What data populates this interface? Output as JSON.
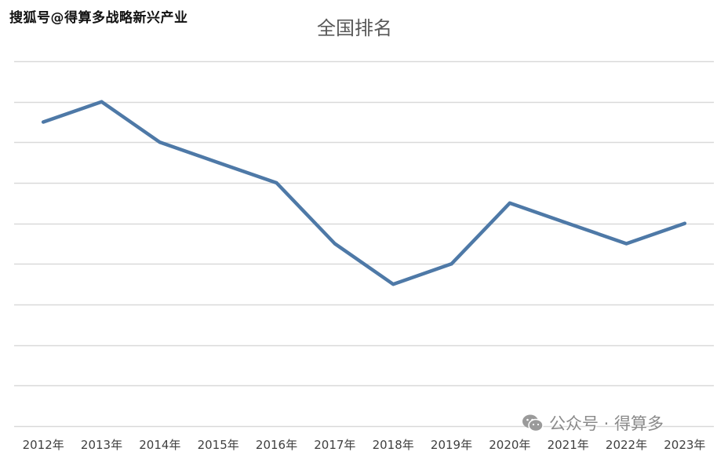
{
  "watermarks": {
    "top": "搜狐号@得算多战略新兴产业",
    "bottom": "公众号 · 得算多",
    "bottom_icon": "wechat-icon"
  },
  "chart_data": {
    "type": "line",
    "title": "全国排名",
    "xlabel": "",
    "ylabel": "",
    "categories": [
      "2012年",
      "2013年",
      "2014年",
      "2015年",
      "2016年",
      "2017年",
      "2018年",
      "2019年",
      "2020年",
      "2021年",
      "2022年",
      "2023年"
    ],
    "series": [
      {
        "values": [
          7.5,
          8.0,
          7.0,
          6.5,
          6.0,
          4.5,
          3.5,
          4.0,
          5.5,
          5.0,
          4.5,
          5.0
        ]
      }
    ],
    "ylim": [
      0,
      9
    ],
    "grid": true,
    "legend": "none",
    "colors": {
      "line": "#4e79a7",
      "grid": "#d9d9d9",
      "title": "#595959",
      "ticks": "#404040"
    }
  }
}
